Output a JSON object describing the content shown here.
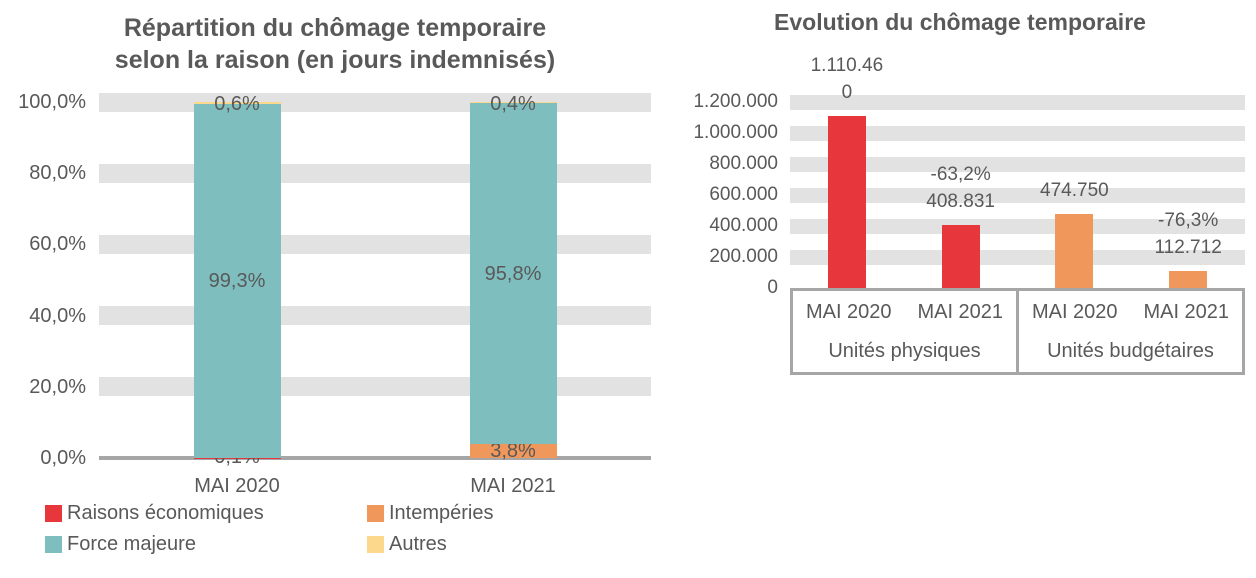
{
  "colors": {
    "text": "#595959",
    "grid_band": "#E2E2E2",
    "axis": "#A6A6A6",
    "background": "#FFFFFF",
    "red": "#E8363D",
    "orange": "#F0985C",
    "teal": "#7FBEBE",
    "yellow": "#FBD88C"
  },
  "chart_data": [
    {
      "type": "bar",
      "subtype": "stacked-100",
      "title": "Répartition du chômage temporaire selon la raison (en jours indemnisés)",
      "title_lines": [
        "Répartition du chômage temporaire",
        "selon la raison (en jours indemnisés)"
      ],
      "xlabel": "",
      "ylabel": "",
      "unit": "percent",
      "ylim": [
        0,
        100
      ],
      "grid": "horizontal-bands",
      "legend_position": "bottom",
      "categories": [
        "MAI 2020",
        "MAI 2021"
      ],
      "y_ticks": [
        {
          "value": 100,
          "label": "100,0%"
        },
        {
          "value": 80,
          "label": "80,0%"
        },
        {
          "value": 60,
          "label": "60,0%"
        },
        {
          "value": 40,
          "label": "40,0%"
        },
        {
          "value": 20,
          "label": "20,0%"
        },
        {
          "value": 0,
          "label": "0,0%"
        }
      ],
      "series": [
        {
          "name": "Raisons économiques",
          "color": "#E8363D",
          "values": [
            0.1,
            0.0
          ],
          "value_labels": [
            "0,1%",
            ""
          ]
        },
        {
          "name": "Intempéries",
          "color": "#F0985C",
          "values": [
            0.0,
            3.8
          ],
          "value_labels": [
            "",
            "3,8%"
          ]
        },
        {
          "name": "Force majeure",
          "color": "#7FBEBE",
          "values": [
            99.3,
            95.8
          ],
          "value_labels": [
            "99,3%",
            "95,8%"
          ]
        },
        {
          "name": "Autres",
          "color": "#FBD88C",
          "values": [
            0.6,
            0.4
          ],
          "value_labels": [
            "0,6%",
            "0,4%"
          ]
        }
      ]
    },
    {
      "type": "bar",
      "subtype": "grouped",
      "title": "Evolution du chômage temporaire",
      "xlabel": "",
      "ylabel": "",
      "ylim": [
        0,
        1200000
      ],
      "grid": "horizontal-bands",
      "legend_position": "none",
      "y_ticks": [
        {
          "value": 1200000,
          "label": "1.200.000"
        },
        {
          "value": 1000000,
          "label": "1.000.000"
        },
        {
          "value": 800000,
          "label": "800.000"
        },
        {
          "value": 600000,
          "label": "600.000"
        },
        {
          "value": 400000,
          "label": "400.000"
        },
        {
          "value": 200000,
          "label": "200.000"
        },
        {
          "value": 0,
          "label": "0"
        }
      ],
      "groups": [
        {
          "label": "Unités physiques",
          "color": "#E8363D",
          "bars": [
            {
              "category": "MAI 2020",
              "value": 1110460,
              "label_lines": [
                "1.110.46",
                "0"
              ]
            },
            {
              "category": "MAI 2021",
              "value": 408831,
              "label_lines": [
                "-63,2%",
                "408.831"
              ]
            }
          ]
        },
        {
          "label": "Unités budgétaires",
          "color": "#F0985C",
          "bars": [
            {
              "category": "MAI 2020",
              "value": 474750,
              "label_lines": [
                "474.750"
              ]
            },
            {
              "category": "MAI 2021",
              "value": 112712,
              "label_lines": [
                "-76,3%",
                "112.712"
              ]
            }
          ]
        }
      ]
    }
  ]
}
